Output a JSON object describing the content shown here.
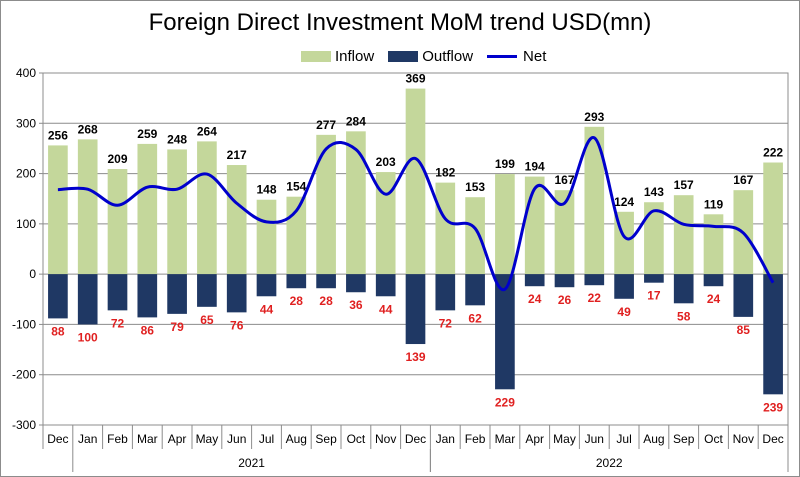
{
  "chart_data": {
    "type": "bar",
    "title": "Foreign Direct Investment MoM  trend USD(mn)",
    "categories": [
      "Dec",
      "Jan",
      "Feb",
      "Mar",
      "Apr",
      "May",
      "Jun",
      "Jul",
      "Aug",
      "Sep",
      "Oct",
      "Nov",
      "Dec",
      "Jan",
      "Feb",
      "Mar",
      "Apr",
      "May",
      "Jun",
      "Jul",
      "Aug",
      "Sep",
      "Oct",
      "Nov",
      "Dec"
    ],
    "year_groups": [
      {
        "label": "2021",
        "start": 1,
        "end": 12
      },
      {
        "label": "2022",
        "start": 13,
        "end": 24
      }
    ],
    "series": [
      {
        "name": "Inflow",
        "kind": "bar",
        "color": "#c4d79b",
        "values": [
          256,
          268,
          209,
          259,
          248,
          264,
          217,
          148,
          154,
          277,
          284,
          203,
          369,
          182,
          153,
          199,
          194,
          167,
          293,
          124,
          143,
          157,
          119,
          167,
          222
        ]
      },
      {
        "name": "Outflow",
        "kind": "bar",
        "color": "#1f3864",
        "values": [
          88,
          100,
          72,
          86,
          79,
          65,
          76,
          44,
          28,
          28,
          36,
          44,
          139,
          72,
          62,
          229,
          24,
          26,
          22,
          49,
          17,
          58,
          24,
          85,
          239
        ]
      },
      {
        "name": "Net",
        "kind": "line",
        "color": "#0000cc",
        "values": [
          168,
          169,
          137,
          173,
          169,
          199,
          141,
          104,
          126,
          249,
          248,
          159,
          230,
          110,
          91,
          -30,
          170,
          141,
          271,
          75,
          126,
          99,
          95,
          82,
          -17
        ]
      }
    ],
    "ylim": [
      -300,
      400
    ],
    "yticks": [
      -300,
      -200,
      -100,
      0,
      100,
      200,
      300,
      400
    ],
    "grid": true,
    "legend": "top",
    "colors": {
      "inflow_label": "#000000",
      "outflow_label": "#e02020"
    }
  }
}
